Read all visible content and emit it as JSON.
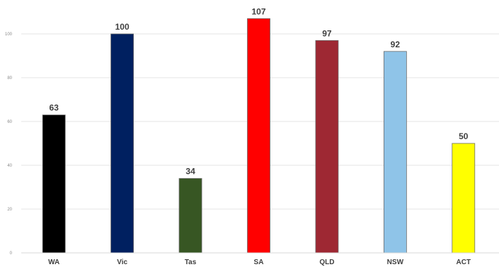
{
  "chart_data": {
    "type": "bar",
    "categories": [
      "WA",
      "Vic",
      "Tas",
      "SA",
      "QLD",
      "NSW",
      "ACT"
    ],
    "values": [
      63,
      100,
      34,
      107,
      97,
      92,
      50
    ],
    "colors": [
      "#000000",
      "#002060",
      "#375623",
      "#ff0000",
      "#9e2833",
      "#8fc4e8",
      "#ffff00"
    ],
    "ylim": [
      0,
      100
    ],
    "yticks": [
      0,
      20,
      40,
      60,
      80,
      100
    ],
    "grid": true,
    "legend": "none"
  }
}
